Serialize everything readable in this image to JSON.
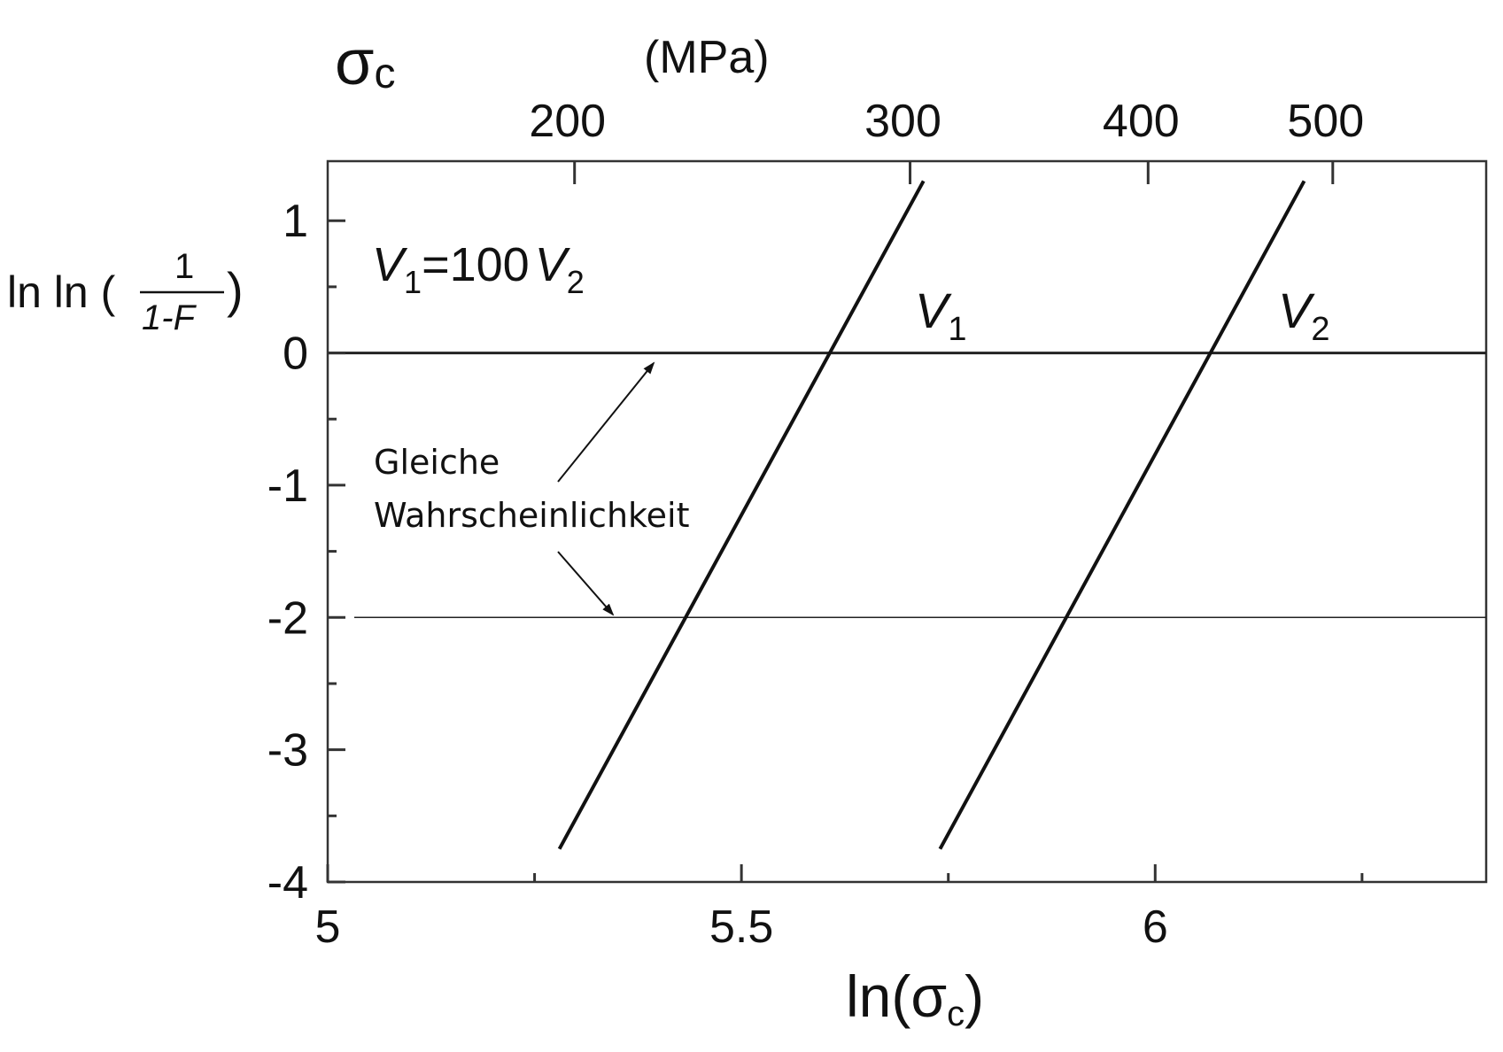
{
  "chart_data": {
    "type": "line",
    "x_axis": {
      "label_prefix": "ln(σ",
      "label_sub": "c",
      "label_suffix": ")",
      "range": [
        5.0,
        6.4
      ],
      "ticks": [
        5,
        5.5,
        6
      ],
      "tick_labels": [
        "5",
        "5.5",
        "6"
      ]
    },
    "y_axis": {
      "label_prefix": "ln ln (",
      "label_num": "1",
      "label_den": "1-F",
      "label_suffix": ")",
      "range": [
        -4,
        1.45
      ],
      "ticks": [
        1,
        0,
        -1,
        -2,
        -3,
        -4
      ],
      "tick_labels": [
        "1",
        "0",
        "-1",
        "-2",
        "-3",
        "-4"
      ]
    },
    "top_axis": {
      "symbol": "σ",
      "symbol_sub": "c",
      "unit": "(MPa)",
      "ticks": [
        200,
        300,
        400,
        500
      ],
      "tick_labels": [
        "200",
        "300",
        "400",
        "500"
      ]
    },
    "series": [
      {
        "name": "V1",
        "label_main": "V",
        "label_sub": "1",
        "x": [
          5.28,
          5.72
        ],
        "y": [
          -3.75,
          1.3
        ]
      },
      {
        "name": "V2",
        "label_main": "V",
        "label_sub": "2",
        "x": [
          5.74,
          6.18
        ],
        "y": [
          -3.75,
          1.3
        ]
      }
    ],
    "reference_lines": [
      {
        "y": 0
      },
      {
        "y": -2
      }
    ],
    "relation": {
      "v1": "V",
      "v1_sub": "1",
      "eq": "=100",
      "v2": "V",
      "v2_sub": "2"
    },
    "annotation": {
      "line1": "Gleiche",
      "line2": "Wahrscheinlichkeit"
    }
  }
}
